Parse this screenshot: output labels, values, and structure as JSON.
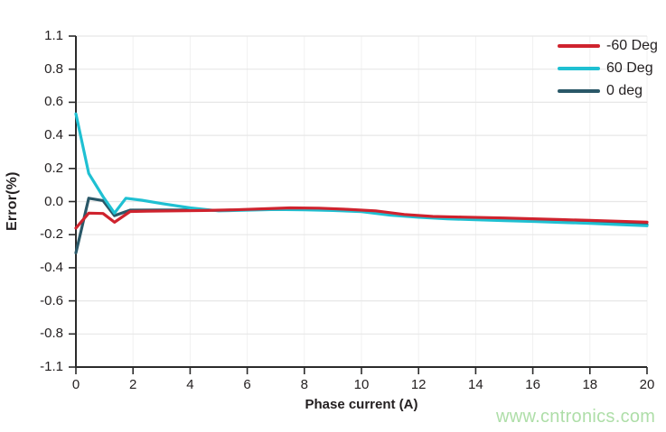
{
  "page": {
    "background": "#ffffff"
  },
  "chart_data": {
    "type": "line",
    "title": "",
    "xlabel": "Phase current (A)",
    "ylabel": "Error(%)",
    "xlim": [
      0,
      20
    ],
    "ylim": [
      -1.1,
      1.1
    ],
    "grid": true,
    "legend_position": "top-right-inside",
    "x_tick_labels": [
      "0",
      "2",
      "4",
      "6",
      "8",
      "10",
      "12",
      "14",
      "16",
      "18",
      "20"
    ],
    "y_tick_labels": [
      "1.1",
      "0.8",
      "0.6",
      "0.4",
      "0.2",
      "0.0",
      "-0.2",
      "-0.4",
      "-0.6",
      "-0.8",
      "-1.1"
    ],
    "x_tick_values": [
      0,
      2,
      4,
      6,
      8,
      10,
      12,
      14,
      16,
      18,
      20
    ],
    "series": [
      {
        "name": "-60 Deg",
        "color": "#cf232e",
        "points": [
          [
            0,
            -0.16
          ],
          [
            0.45,
            -0.07
          ],
          [
            0.95,
            -0.072
          ],
          [
            1.35,
            -0.125
          ],
          [
            1.9,
            -0.06
          ],
          [
            2.5,
            -0.058
          ],
          [
            3.5,
            -0.056
          ],
          [
            4.5,
            -0.054
          ],
          [
            5.5,
            -0.05
          ],
          [
            6.5,
            -0.044
          ],
          [
            7.5,
            -0.038
          ],
          [
            8.5,
            -0.04
          ],
          [
            9.5,
            -0.047
          ],
          [
            10.5,
            -0.056
          ],
          [
            11.5,
            -0.078
          ],
          [
            12.5,
            -0.09
          ],
          [
            13.5,
            -0.094
          ],
          [
            15,
            -0.099
          ],
          [
            16,
            -0.104
          ],
          [
            17,
            -0.109
          ],
          [
            18,
            -0.114
          ],
          [
            19,
            -0.119
          ],
          [
            20,
            -0.125
          ]
        ]
      },
      {
        "name": "60 Deg",
        "color": "#1fc0d2",
        "points": [
          [
            0,
            0.53
          ],
          [
            0.45,
            0.17
          ],
          [
            0.95,
            0.03
          ],
          [
            1.35,
            -0.07
          ],
          [
            1.75,
            0.02
          ],
          [
            2.3,
            0.008
          ],
          [
            3,
            -0.012
          ],
          [
            4,
            -0.038
          ],
          [
            5,
            -0.056
          ],
          [
            6,
            -0.052
          ],
          [
            7,
            -0.048
          ],
          [
            8,
            -0.05
          ],
          [
            9,
            -0.054
          ],
          [
            10,
            -0.061
          ],
          [
            11,
            -0.082
          ],
          [
            12,
            -0.095
          ],
          [
            13,
            -0.104
          ],
          [
            14,
            -0.11
          ],
          [
            15,
            -0.115
          ],
          [
            16,
            -0.12
          ],
          [
            17,
            -0.126
          ],
          [
            18,
            -0.132
          ],
          [
            19,
            -0.139
          ],
          [
            20,
            -0.146
          ]
        ]
      },
      {
        "name": "0 deg",
        "color": "#2a5868",
        "points": [
          [
            0,
            -0.31
          ],
          [
            0.45,
            0.02
          ],
          [
            0.95,
            0.006
          ],
          [
            1.35,
            -0.085
          ],
          [
            1.9,
            -0.052
          ],
          [
            3,
            -0.051
          ],
          [
            4,
            -0.051
          ],
          [
            5,
            -0.053
          ],
          [
            6,
            -0.05
          ],
          [
            7,
            -0.046
          ],
          [
            8,
            -0.047
          ],
          [
            9,
            -0.051
          ],
          [
            10,
            -0.058
          ],
          [
            11,
            -0.079
          ],
          [
            12,
            -0.092
          ],
          [
            13,
            -0.1
          ],
          [
            14,
            -0.107
          ],
          [
            15,
            -0.112
          ],
          [
            16,
            -0.116
          ],
          [
            17,
            -0.121
          ],
          [
            18,
            -0.127
          ],
          [
            19,
            -0.133
          ],
          [
            20,
            -0.14
          ]
        ]
      }
    ]
  },
  "legend": {
    "items": [
      {
        "label": "-60 Deg",
        "color": "#cf232e"
      },
      {
        "label": "60 Deg",
        "color": "#1fc0d2"
      },
      {
        "label": "0 deg",
        "color": "#2a5868"
      }
    ]
  },
  "colors": {
    "axis": "#2b2b2b",
    "tick_text": "#231f20",
    "grid_horizontal": "#e7e7e7",
    "grid_vertical": "#f1f1f1"
  },
  "watermark": {
    "text": "www.cntronics.com",
    "color": "#aedea8"
  }
}
